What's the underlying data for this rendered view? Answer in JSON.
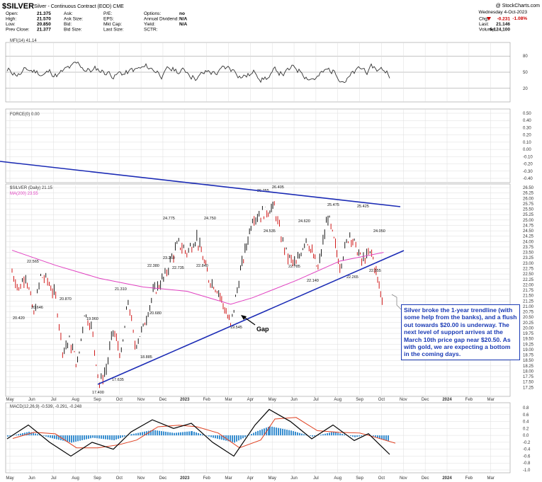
{
  "header": {
    "symbol": "$SILVER",
    "description": "Silver - Continuous Contract (EOD) CME",
    "date": "Wednesday 4-Oct-2023",
    "change_pct": "-1.08%",
    "source": "@ StockCharts.com",
    "col1": [
      [
        "Open:",
        "21.375"
      ],
      [
        "High:",
        "21.570"
      ],
      [
        "Low:",
        "20.850"
      ],
      [
        "Prev Close:",
        "21.377"
      ]
    ],
    "col2": [
      "Ask:",
      "Ask Size:",
      "Bid:",
      "Bid Size:"
    ],
    "col3": [
      "P/E:",
      "EPS:",
      "Mkt Cap:",
      "Last Size:"
    ],
    "col4": [
      [
        "Options:",
        "no"
      ],
      [
        "Annual Dividend:",
        "N/A"
      ],
      [
        "Yield:",
        "N/A"
      ],
      [
        "SCTR:",
        ""
      ]
    ],
    "col5": [
      [
        "Chg:",
        "-0.231"
      ],
      [
        "Last:",
        "21.146"
      ],
      [
        "Volume:",
        "6,124,100"
      ]
    ]
  },
  "panels": {
    "mfi_label": "MFI(14) 41.14",
    "force_label": "FORCE(0) 0.00",
    "price_label": "$SILVER (Daily) 21.15",
    "ma_label": "MA(200) 23.55",
    "macd_label": "MACD(12,26,9) -0.539, -0.291, -0.248"
  },
  "annotation": {
    "text": "Silver broke the 1-year trendline (with some help from the banks), and a flush out towards $20.00 is underway. The next level of support arrives at the March 10th price gap near $20.50. As with gold, we are expecting a bottom in the coming days.",
    "gap_label": "Gap"
  },
  "colors": {
    "price_up": "#000000",
    "price_down": "#cc0000",
    "ma": "#e040c0",
    "trendline": "#1b2bb5",
    "macd": "#000000",
    "signal": "#e04020",
    "hist": "#3a8fd0",
    "change_neg": "#cc0000"
  },
  "chart_data": {
    "type": "line",
    "title": "$SILVER (Daily) 21.15",
    "x_ticks": [
      "May",
      "Jun",
      "Jul",
      "Aug",
      "Sep",
      "Oct",
      "Nov",
      "Dec",
      "2023",
      "Feb",
      "Mar",
      "Apr",
      "May",
      "Jun",
      "Jul",
      "Aug",
      "Sep",
      "Oct",
      "Nov",
      "Dec",
      "2024",
      "Feb",
      "Mar"
    ],
    "y_ticks": [
      "26.50",
      "26.25",
      "26.00",
      "25.75",
      "25.50",
      "25.25",
      "25.00",
      "24.75",
      "24.50",
      "24.25",
      "24.00",
      "23.75",
      "23.50",
      "23.25",
      "23.00",
      "22.75",
      "22.50",
      "22.25",
      "22.00",
      "21.75",
      "21.50",
      "21.25",
      "21.00",
      "20.75",
      "20.50",
      "20.25",
      "20.00",
      "19.75",
      "19.50",
      "19.25",
      "19.00",
      "18.75",
      "18.50",
      "18.25",
      "18.00",
      "17.75",
      "17.50",
      "17.25"
    ],
    "ylim": [
      17.0,
      26.6
    ],
    "series": [
      {
        "name": "$SILVER (Daily) 21.15",
        "points": [
          [
            "May",
            22.6
          ],
          [
            "May",
            21.8
          ],
          [
            "May",
            22.5
          ],
          [
            "Jun",
            20.6
          ],
          [
            "Jun",
            22.4
          ],
          [
            "Jun",
            22.2
          ],
          [
            "Jul",
            21.4
          ],
          [
            "Jul",
            19.0
          ],
          [
            "Jul",
            19.4
          ],
          [
            "Aug",
            18.3
          ],
          [
            "Aug",
            20.7
          ],
          [
            "Aug",
            20.1
          ],
          [
            "Sep",
            17.4
          ],
          [
            "Sep",
            18.1
          ],
          [
            "Sep",
            19.9
          ],
          [
            "Oct",
            18.7
          ],
          [
            "Oct",
            21.3
          ],
          [
            "Oct",
            19.2
          ],
          [
            "Nov",
            20.0
          ],
          [
            "Nov",
            21.6
          ],
          [
            "Dec",
            22.4
          ],
          [
            "Dec",
            23.3
          ],
          [
            "Dec",
            23.9
          ],
          [
            "2023",
            23.5
          ],
          [
            "2023",
            24.2
          ],
          [
            "Feb",
            22.3
          ],
          [
            "Feb",
            21.7
          ],
          [
            "Mar",
            20.1
          ],
          [
            "Mar",
            22.6
          ],
          [
            "Apr",
            25.1
          ],
          [
            "Apr",
            25.3
          ],
          [
            "May",
            25.6
          ],
          [
            "May",
            24.2
          ],
          [
            "May",
            23.3
          ],
          [
            "Jun",
            22.9
          ],
          [
            "Jun",
            24.2
          ],
          [
            "Jul",
            22.7
          ],
          [
            "Jul",
            25.2
          ],
          [
            "Aug",
            22.9
          ],
          [
            "Aug",
            24.4
          ],
          [
            "Sep",
            23.1
          ],
          [
            "Sep",
            23.5
          ],
          [
            "Oct",
            21.0
          ]
        ]
      },
      {
        "name": "MA(200) 23.55",
        "points": [
          [
            "May",
            23.6
          ],
          [
            "Jul",
            22.9
          ],
          [
            "Sep",
            22.3
          ],
          [
            "Nov",
            21.9
          ],
          [
            "2023",
            21.7
          ],
          [
            "Mar",
            21.1
          ],
          [
            "Apr",
            21.4
          ],
          [
            "Jun",
            22.2
          ],
          [
            "Aug",
            23.1
          ],
          [
            "Oct",
            23.5
          ]
        ]
      }
    ],
    "price_labels": [
      "22.565",
      "20.420",
      "20.646",
      "20.870",
      "19.960",
      "17.400",
      "17.635",
      "21.310",
      "18.885",
      "20.680",
      "22.380",
      "24.775",
      "23.260",
      "22.735",
      "24.750",
      "22.840",
      "19.545",
      "26.255",
      "26.405",
      "24.535",
      "22.785",
      "24.620",
      "22.140",
      "25.475",
      "22.265",
      "25.425",
      "24.050",
      "22.555"
    ],
    "mfi_ticks": [
      "80",
      "50",
      "20"
    ],
    "force_ticks": [
      "0.50",
      "0.40",
      "0.30",
      "0.20",
      "0.10",
      "0.00",
      "-0.10",
      "-0.20",
      "-0.30",
      "-0.40"
    ],
    "macd_ticks": [
      "0.8",
      "0.6",
      "0.4",
      "0.2",
      "0.0",
      "-0.2",
      "-0.4",
      "-0.6",
      "-0.8",
      "-1.0"
    ]
  }
}
